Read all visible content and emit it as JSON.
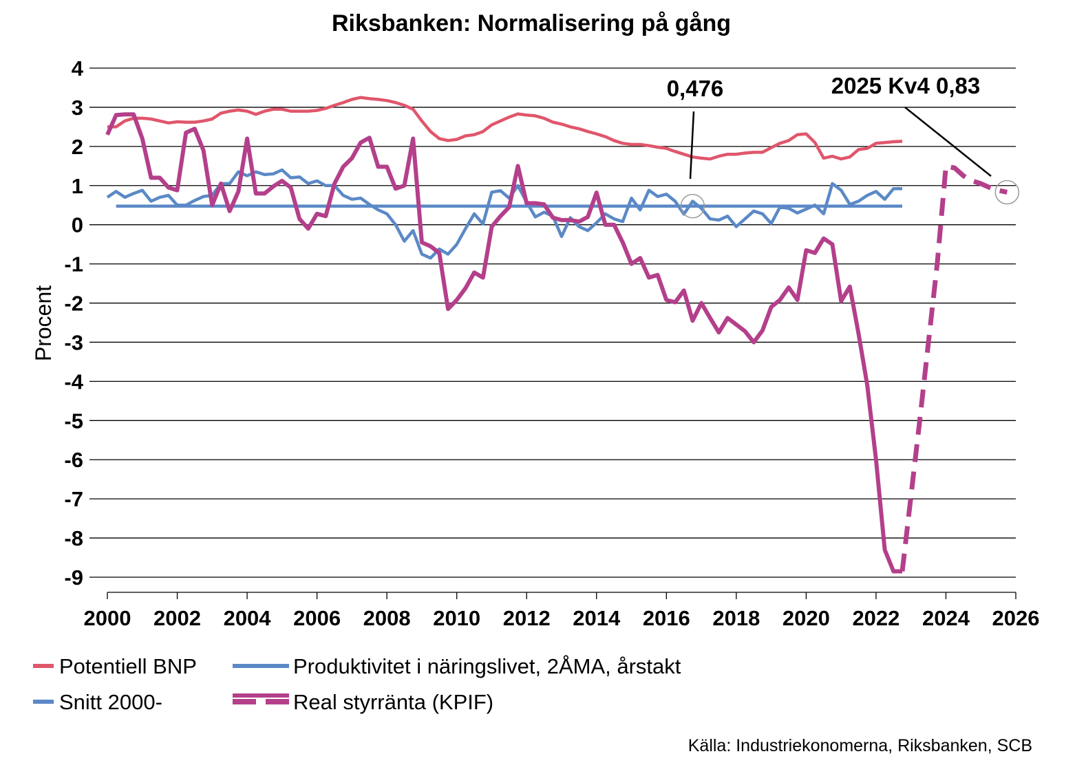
{
  "chart_data": {
    "type": "line",
    "title": "Riksbanken: Normalisering på gång",
    "xlabel": "",
    "ylabel": "Procent",
    "xlim": [
      2000,
      2026
    ],
    "ylim": [
      -9,
      4
    ],
    "x_ticks": [
      "2000",
      "2002",
      "2004",
      "2006",
      "2008",
      "2010",
      "2012",
      "2014",
      "2016",
      "2018",
      "2020",
      "2022",
      "2024",
      "2026"
    ],
    "y_ticks": [
      "4",
      "3",
      "2",
      "1",
      "0",
      "-1",
      "-2",
      "-3",
      "-4",
      "-5",
      "-6",
      "-7",
      "-8",
      "-9"
    ],
    "grid": true,
    "legend_position": "bottom",
    "series": [
      {
        "name": "Potentiell BNP",
        "color": "#e0566b",
        "style": "solid",
        "x": [
          2000.0,
          2000.25,
          2000.5,
          2000.75,
          2001.0,
          2001.25,
          2001.5,
          2001.75,
          2002.0,
          2002.25,
          2002.5,
          2002.75,
          2003.0,
          2003.25,
          2003.5,
          2003.75,
          2004.0,
          2004.25,
          2004.5,
          2004.75,
          2005.0,
          2005.25,
          2005.5,
          2005.75,
          2006.0,
          2006.25,
          2006.5,
          2006.75,
          2007.0,
          2007.25,
          2007.5,
          2007.75,
          2008.0,
          2008.25,
          2008.5,
          2008.75,
          2009.0,
          2009.25,
          2009.5,
          2009.75,
          2010.0,
          2010.25,
          2010.5,
          2010.75,
          2011.0,
          2011.25,
          2011.5,
          2011.75,
          2012.0,
          2012.25,
          2012.5,
          2012.75,
          2013.0,
          2013.25,
          2013.5,
          2013.75,
          2014.0,
          2014.25,
          2014.5,
          2014.75,
          2015.0,
          2015.25,
          2015.5,
          2015.75,
          2016.0,
          2016.25,
          2016.5,
          2016.75,
          2017.0,
          2017.25,
          2017.5,
          2017.75,
          2018.0,
          2018.25,
          2018.5,
          2018.75,
          2019.0,
          2019.25,
          2019.5,
          2019.75,
          2020.0,
          2020.25,
          2020.5,
          2020.75,
          2021.0,
          2021.25,
          2021.5,
          2021.75,
          2022.0,
          2022.25,
          2022.5,
          2022.75
        ],
        "y": [
          2.5,
          2.5,
          2.65,
          2.72,
          2.72,
          2.7,
          2.65,
          2.6,
          2.63,
          2.62,
          2.62,
          2.65,
          2.7,
          2.85,
          2.9,
          2.93,
          2.9,
          2.82,
          2.9,
          2.95,
          2.95,
          2.9,
          2.9,
          2.9,
          2.92,
          2.97,
          3.05,
          3.12,
          3.2,
          3.25,
          3.22,
          3.2,
          3.17,
          3.12,
          3.05,
          2.95,
          2.65,
          2.38,
          2.2,
          2.15,
          2.18,
          2.27,
          2.3,
          2.38,
          2.55,
          2.65,
          2.75,
          2.83,
          2.8,
          2.78,
          2.72,
          2.62,
          2.57,
          2.5,
          2.45,
          2.38,
          2.32,
          2.25,
          2.15,
          2.08,
          2.05,
          2.05,
          2.02,
          1.98,
          1.95,
          1.87,
          1.8,
          1.73,
          1.7,
          1.68,
          1.75,
          1.8,
          1.8,
          1.83,
          1.85,
          1.85,
          1.97,
          2.08,
          2.15,
          2.3,
          2.32,
          2.1,
          1.7,
          1.75,
          1.68,
          1.73,
          1.92,
          1.95,
          2.08,
          2.1,
          2.12,
          2.13
        ]
      },
      {
        "name": "Produktivitet i näringslivet, 2ÅMA, årstakt",
        "color": "#5b89c6",
        "style": "solid",
        "x": [
          2000.0,
          2000.25,
          2000.5,
          2000.75,
          2001.0,
          2001.25,
          2001.5,
          2001.75,
          2002.0,
          2002.25,
          2002.5,
          2002.75,
          2003.0,
          2003.25,
          2003.5,
          2003.75,
          2004.0,
          2004.25,
          2004.5,
          2004.75,
          2005.0,
          2005.25,
          2005.5,
          2005.75,
          2006.0,
          2006.25,
          2006.5,
          2006.75,
          2007.0,
          2007.25,
          2007.5,
          2007.75,
          2008.0,
          2008.25,
          2008.5,
          2008.75,
          2009.0,
          2009.25,
          2009.5,
          2009.75,
          2010.0,
          2010.25,
          2010.5,
          2010.75,
          2011.0,
          2011.25,
          2011.5,
          2011.75,
          2012.0,
          2012.25,
          2012.5,
          2012.75,
          2013.0,
          2013.25,
          2013.5,
          2013.75,
          2014.0,
          2014.25,
          2014.5,
          2014.75,
          2015.0,
          2015.25,
          2015.5,
          2015.75,
          2016.0,
          2016.25,
          2016.5,
          2016.75,
          2017.0,
          2017.25,
          2017.5,
          2017.75,
          2018.0,
          2018.25,
          2018.5,
          2018.75,
          2019.0,
          2019.25,
          2019.5,
          2019.75,
          2020.0,
          2020.25,
          2020.5,
          2020.75,
          2021.0,
          2021.25,
          2021.5,
          2021.75,
          2022.0,
          2022.25,
          2022.5,
          2022.75
        ],
        "y": [
          0.7,
          0.85,
          0.7,
          0.8,
          0.88,
          0.6,
          0.7,
          0.75,
          0.5,
          0.5,
          0.62,
          0.72,
          0.75,
          1.05,
          1.05,
          1.35,
          1.25,
          1.35,
          1.28,
          1.3,
          1.4,
          1.2,
          1.22,
          1.05,
          1.12,
          1.0,
          1.0,
          0.75,
          0.65,
          0.68,
          0.52,
          0.38,
          0.28,
          0.0,
          -0.42,
          -0.15,
          -0.75,
          -0.85,
          -0.62,
          -0.75,
          -0.5,
          -0.1,
          0.28,
          0.02,
          0.83,
          0.87,
          0.68,
          1.0,
          0.58,
          0.2,
          0.32,
          0.22,
          -0.3,
          0.18,
          -0.05,
          -0.15,
          0.05,
          0.28,
          0.15,
          0.08,
          0.68,
          0.38,
          0.88,
          0.72,
          0.78,
          0.6,
          0.27,
          0.6,
          0.42,
          0.15,
          0.12,
          0.22,
          -0.05,
          0.15,
          0.35,
          0.28,
          0.03,
          0.45,
          0.42,
          0.3,
          0.4,
          0.5,
          0.28,
          1.05,
          0.88,
          0.52,
          0.6,
          0.75,
          0.85,
          0.65,
          0.92,
          0.92
        ]
      },
      {
        "name": "Snitt 2000-",
        "color": "#5b89c6",
        "style": "solid",
        "x": [
          2000.25,
          2022.75
        ],
        "y": [
          0.476,
          0.476
        ]
      },
      {
        "name": "Real styrränta (KPIF)",
        "color": "#b43f8b",
        "style": "solid+dashed",
        "x": [
          2000.0,
          2000.25,
          2000.5,
          2000.75,
          2001.0,
          2001.25,
          2001.5,
          2001.75,
          2002.0,
          2002.25,
          2002.5,
          2002.75,
          2003.0,
          2003.25,
          2003.5,
          2003.75,
          2004.0,
          2004.25,
          2004.5,
          2004.75,
          2005.0,
          2005.25,
          2005.5,
          2005.75,
          2006.0,
          2006.25,
          2006.5,
          2006.75,
          2007.0,
          2007.25,
          2007.5,
          2007.75,
          2008.0,
          2008.25,
          2008.5,
          2008.75,
          2009.0,
          2009.25,
          2009.5,
          2009.75,
          2010.0,
          2010.25,
          2010.5,
          2010.75,
          2011.0,
          2011.25,
          2011.5,
          2011.75,
          2012.0,
          2012.25,
          2012.5,
          2012.75,
          2013.0,
          2013.25,
          2013.5,
          2013.75,
          2014.0,
          2014.25,
          2014.5,
          2014.75,
          2015.0,
          2015.25,
          2015.5,
          2015.75,
          2016.0,
          2016.25,
          2016.5,
          2016.75,
          2017.0,
          2017.25,
          2017.5,
          2017.75,
          2018.0,
          2018.25,
          2018.5,
          2018.75,
          2019.0,
          2019.25,
          2019.5,
          2019.75,
          2020.0,
          2020.25,
          2020.5,
          2020.75,
          2021.0,
          2021.25,
          2021.5,
          2021.75,
          2022.0,
          2022.25,
          2022.5,
          2022.75
        ],
        "y": [
          2.3,
          2.8,
          2.82,
          2.82,
          2.2,
          1.2,
          1.2,
          0.95,
          0.88,
          2.35,
          2.45,
          1.9,
          0.5,
          1.05,
          0.35,
          0.85,
          2.2,
          0.8,
          0.8,
          0.98,
          1.12,
          0.95,
          0.15,
          -0.1,
          0.28,
          0.22,
          1.05,
          1.48,
          1.7,
          2.1,
          2.22,
          1.48,
          1.48,
          0.92,
          1.0,
          2.2,
          -0.45,
          -0.55,
          -0.72,
          -2.15,
          -1.92,
          -1.62,
          -1.22,
          -1.35,
          -0.05,
          0.22,
          0.45,
          1.5,
          0.55,
          0.55,
          0.52,
          0.18,
          0.12,
          0.12,
          0.08,
          0.2,
          0.82,
          0.0,
          0.0,
          -0.45,
          -1.0,
          -0.85,
          -1.35,
          -1.28,
          -1.92,
          -1.98,
          -1.68,
          -2.45,
          -2.0,
          -2.38,
          -2.75,
          -2.38,
          -2.55,
          -2.72,
          -3.0,
          -2.7,
          -2.1,
          -1.92,
          -1.6,
          -1.92,
          -0.65,
          -0.72,
          -0.35,
          -0.5,
          -1.95,
          -1.58,
          -2.78,
          -4.1,
          -6.0,
          -8.3,
          -8.85,
          -8.85
        ],
        "forecast_x": [
          2022.75,
          2023.25,
          2023.75,
          2024.0,
          2024.25,
          2024.5,
          2024.75,
          2025.0,
          2025.25,
          2025.5,
          2025.75
        ],
        "forecast_y": [
          -8.85,
          -5.0,
          -1.0,
          1.5,
          1.45,
          1.25,
          1.12,
          1.05,
          0.95,
          0.88,
          0.83
        ]
      }
    ],
    "annotations": [
      {
        "text": "0,476",
        "x": 2016.75,
        "y": 0.476
      },
      {
        "text": "2025 Kv4 0,83",
        "x": 2025.75,
        "y": 0.83
      }
    ],
    "source": "Källa: Industriekonomerna, Riksbanken, SCB"
  }
}
